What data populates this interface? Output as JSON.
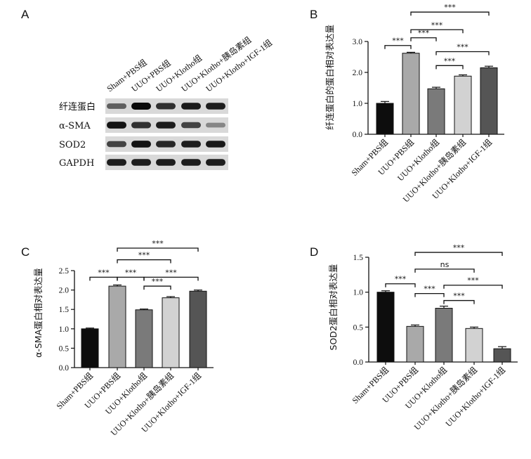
{
  "panel_a": {
    "letter": "A",
    "lane_labels": [
      "Sham+PBS组",
      "UUO+PBS组",
      "UUO+Klotho组",
      "UUO+Klotho+胰岛素组",
      "UUO+Klotho+IGF-1组"
    ],
    "blots": [
      {
        "label": "纤连蛋白",
        "intensities": [
          0.55,
          1.0,
          0.8,
          0.92,
          0.9
        ]
      },
      {
        "label": "α-SMA",
        "intensities": [
          0.95,
          0.8,
          0.9,
          0.7,
          0.35
        ]
      },
      {
        "label": "SOD2",
        "intensities": [
          0.7,
          0.95,
          0.85,
          0.9,
          0.92
        ]
      },
      {
        "label": "GAPDH",
        "intensities": [
          0.9,
          0.9,
          0.9,
          0.9,
          0.9
        ]
      }
    ]
  },
  "chart_data": [
    {
      "letter": "B",
      "type": "bar",
      "ylabel": "纤连蛋白的蛋白相对表达量",
      "categories": [
        "Sham+PBS组",
        "UUO+PBS组",
        "UUO+Klotho组",
        "UUO+Klotho+胰岛素组",
        "UUO+Klotho+IGF-1组"
      ],
      "values": [
        1.0,
        2.62,
        1.47,
        1.88,
        2.15
      ],
      "errors": [
        0.06,
        0.03,
        0.05,
        0.04,
        0.05
      ],
      "colors": [
        "#0d0d0d",
        "#a9a9a9",
        "#7a7a7a",
        "#d2d2d2",
        "#555555"
      ],
      "ylim": [
        0,
        3.0
      ],
      "yticks": [
        "0.0",
        "1.0",
        "2.0",
        "3.0"
      ],
      "ytick_values": [
        0,
        1,
        2,
        3
      ],
      "comparisons": [
        {
          "from": 0,
          "to": 1,
          "label": "***",
          "y": 2.87
        },
        {
          "from": 1,
          "to": 2,
          "label": "***",
          "y": 3.12
        },
        {
          "from": 1,
          "to": 3,
          "label": "***",
          "y": 3.38
        },
        {
          "from": 1,
          "to": 4,
          "label": "***",
          "y": 3.95
        },
        {
          "from": 2,
          "to": 4,
          "label": "***",
          "y": 2.67
        },
        {
          "from": 2,
          "to": 3,
          "label": "***",
          "y": 2.22
        }
      ]
    },
    {
      "letter": "C",
      "type": "bar",
      "ylabel": "α-SMA蛋白相对表达量",
      "categories": [
        "Sham+PBS组",
        "UUO+PBS组",
        "UUO+Klotho组",
        "UUO+Klotho+胰岛素组",
        "UUO+Klotho+IGF-1组"
      ],
      "values": [
        1.0,
        2.1,
        1.49,
        1.8,
        1.97
      ],
      "errors": [
        0.02,
        0.03,
        0.02,
        0.03,
        0.03
      ],
      "colors": [
        "#0d0d0d",
        "#a9a9a9",
        "#7a7a7a",
        "#d2d2d2",
        "#555555"
      ],
      "ylim": [
        0,
        2.5
      ],
      "yticks": [
        "0.0",
        "0.5",
        "1.0",
        "1.5",
        "2.0",
        "2.5"
      ],
      "ytick_values": [
        0,
        0.5,
        1,
        1.5,
        2,
        2.5
      ],
      "comparisons": [
        {
          "from": 0,
          "to": 1,
          "label": "***",
          "y": 2.33
        },
        {
          "from": 1,
          "to": 2,
          "label": "***",
          "y": 2.33
        },
        {
          "from": 1,
          "to": 3,
          "label": "***",
          "y": 2.78
        },
        {
          "from": 1,
          "to": 4,
          "label": "***",
          "y": 3.08
        },
        {
          "from": 2,
          "to": 4,
          "label": "***",
          "y": 2.33
        },
        {
          "from": 2,
          "to": 3,
          "label": "***",
          "y": 2.1
        }
      ]
    },
    {
      "letter": "D",
      "type": "bar",
      "ylabel": "SOD2蛋白相对表达量",
      "categories": [
        "Sham+PBS组",
        "UUO+PBS组",
        "UUO+Klotho组",
        "UUO+Klotho+胰岛素组",
        "UUO+Klotho+IGF-1组"
      ],
      "values": [
        1.0,
        0.51,
        0.77,
        0.48,
        0.19
      ],
      "errors": [
        0.02,
        0.02,
        0.03,
        0.02,
        0.03
      ],
      "colors": [
        "#0d0d0d",
        "#a9a9a9",
        "#7a7a7a",
        "#d2d2d2",
        "#555555"
      ],
      "ylim": [
        0,
        1.5
      ],
      "yticks": [
        "0.0",
        "0.5",
        "1.0",
        "1.5"
      ],
      "ytick_values": [
        0,
        0.5,
        1,
        1.5
      ],
      "comparisons": [
        {
          "from": 0,
          "to": 1,
          "label": "***",
          "y": 1.12
        },
        {
          "from": 1,
          "to": 3,
          "label": "ns",
          "y": 1.33
        },
        {
          "from": 1,
          "to": 4,
          "label": "***",
          "y": 1.57
        },
        {
          "from": 1,
          "to": 2,
          "label": "***",
          "y": 0.98
        },
        {
          "from": 2,
          "to": 4,
          "label": "***",
          "y": 1.1
        },
        {
          "from": 2,
          "to": 3,
          "label": "***",
          "y": 0.88
        }
      ]
    }
  ]
}
